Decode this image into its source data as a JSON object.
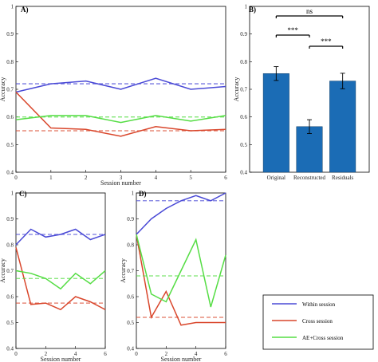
{
  "colors": {
    "within": "#4a4ad6",
    "cross": "#d9462b",
    "ae": "#55dd44",
    "bar": "#1b6cb5"
  },
  "legend": {
    "items": [
      {
        "key": "within",
        "label": "Within session"
      },
      {
        "key": "cross",
        "label": "Cross session"
      },
      {
        "key": "ae",
        "label": "AE+Cross session"
      }
    ]
  },
  "chart_data": [
    {
      "id": "A",
      "label": "A)",
      "type": "line",
      "xlabel": "Session number",
      "ylabel": "Accuracy",
      "xlim": [
        0,
        6
      ],
      "ylim": [
        0.4,
        1.0
      ],
      "xticks": [
        0,
        1,
        2,
        3,
        4,
        5,
        6
      ],
      "yticks": [
        0.4,
        0.5,
        0.6,
        0.7,
        0.8,
        0.9,
        1
      ],
      "x": [
        0,
        1,
        2,
        3,
        4,
        5,
        6
      ],
      "series": [
        {
          "key": "within",
          "values": [
            0.69,
            0.72,
            0.73,
            0.7,
            0.74,
            0.7,
            0.71
          ],
          "baseline": 0.72
        },
        {
          "key": "cross",
          "values": [
            0.69,
            0.56,
            0.555,
            0.53,
            0.565,
            0.55,
            0.555
          ],
          "baseline": 0.55
        },
        {
          "key": "ae",
          "values": [
            0.59,
            0.605,
            0.605,
            0.58,
            0.605,
            0.585,
            0.605
          ],
          "baseline": 0.6
        }
      ]
    },
    {
      "id": "B",
      "label": "B)",
      "type": "bar",
      "ylabel": "Accuracy",
      "ylim": [
        0.4,
        1.0
      ],
      "yticks": [
        0.4,
        0.5,
        0.6,
        0.7,
        0.8,
        0.9,
        1
      ],
      "categories": [
        "Original",
        "Reconstructed",
        "Residuals"
      ],
      "values": [
        0.757,
        0.565,
        0.73
      ],
      "errors": [
        0.025,
        0.025,
        0.028
      ],
      "significance": [
        {
          "from": 0,
          "to": 2,
          "label": "ns"
        },
        {
          "from": 0,
          "to": 1,
          "label": "***"
        },
        {
          "from": 1,
          "to": 2,
          "label": "***"
        }
      ]
    },
    {
      "id": "C",
      "label": "C)",
      "type": "line",
      "xlabel": "Session number",
      "ylabel": "Accuracy",
      "xlim": [
        0,
        6
      ],
      "ylim": [
        0.4,
        1.0
      ],
      "xticks": [
        0,
        2,
        4,
        6
      ],
      "yticks": [
        0.4,
        0.5,
        0.6,
        0.7,
        0.8,
        0.9,
        1
      ],
      "x": [
        0,
        1,
        2,
        3,
        4,
        5,
        6
      ],
      "series": [
        {
          "key": "within",
          "values": [
            0.8,
            0.86,
            0.83,
            0.84,
            0.86,
            0.82,
            0.84
          ],
          "baseline": 0.84
        },
        {
          "key": "cross",
          "values": [
            0.79,
            0.57,
            0.575,
            0.55,
            0.6,
            0.58,
            0.55
          ],
          "baseline": 0.575
        },
        {
          "key": "ae",
          "values": [
            0.7,
            0.69,
            0.67,
            0.63,
            0.69,
            0.65,
            0.7
          ],
          "baseline": 0.67
        }
      ]
    },
    {
      "id": "D",
      "label": "D)",
      "type": "line",
      "xlabel": "Session number",
      "ylabel": "Accuracy",
      "xlim": [
        0,
        6
      ],
      "ylim": [
        0.4,
        1.0
      ],
      "xticks": [
        0,
        2,
        4,
        6
      ],
      "yticks": [
        0.4,
        0.5,
        0.6,
        0.7,
        0.8,
        0.9,
        1
      ],
      "x": [
        0,
        1,
        2,
        3,
        4,
        5,
        6
      ],
      "series": [
        {
          "key": "within",
          "values": [
            0.84,
            0.9,
            0.94,
            0.97,
            0.99,
            0.97,
            1.0
          ],
          "baseline": 0.97
        },
        {
          "key": "cross",
          "values": [
            0.84,
            0.52,
            0.62,
            0.49,
            0.5,
            0.5,
            0.5
          ],
          "baseline": 0.52
        },
        {
          "key": "ae",
          "values": [
            0.84,
            0.61,
            0.58,
            0.7,
            0.82,
            0.56,
            0.76
          ],
          "baseline": 0.68
        }
      ]
    }
  ]
}
